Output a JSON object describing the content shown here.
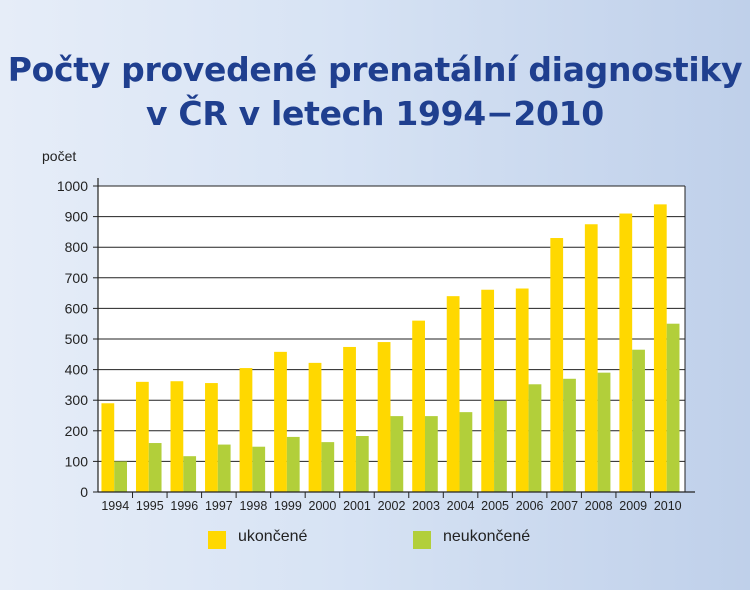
{
  "chart_data": {
    "type": "bar",
    "title": "Počty provedené prenatální diagnostiky v ČR v letech 1994–2010",
    "title_lines": [
      "Počty provedené prenatální diagnostiky",
      "v ČR v letech 1994−2010"
    ],
    "ylabel": "počet",
    "xlabel": "",
    "ylim": [
      0,
      1000
    ],
    "yticks": [
      0,
      100,
      200,
      300,
      400,
      500,
      600,
      700,
      800,
      900,
      1000
    ],
    "grid": true,
    "legend_placement": "bottom",
    "categories": [
      "1994",
      "1995",
      "1996",
      "1997",
      "1998",
      "1999",
      "2000",
      "2001",
      "2002",
      "2003",
      "2004",
      "2005",
      "2006",
      "2007",
      "2008",
      "2009",
      "2010"
    ],
    "series": [
      {
        "name": "ukončené",
        "color": "#ffd800",
        "values": [
          290,
          360,
          362,
          356,
          405,
          458,
          422,
          474,
          490,
          560,
          640,
          661,
          665,
          830,
          875,
          910,
          940
        ]
      },
      {
        "name": "neukončené",
        "color": "#b2cf3a",
        "values": [
          100,
          160,
          117,
          155,
          148,
          180,
          163,
          183,
          248,
          248,
          261,
          298,
          352,
          370,
          390,
          465,
          550
        ]
      }
    ]
  }
}
